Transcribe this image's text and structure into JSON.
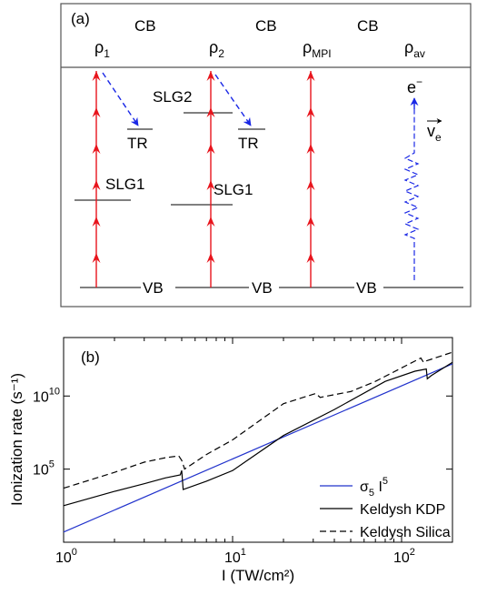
{
  "panel_a": {
    "label": "(a)",
    "cb_labels": [
      "CB",
      "CB",
      "CB"
    ],
    "vb_labels": [
      "VB",
      "VB",
      "VB"
    ],
    "rho": [
      {
        "base": "ρ",
        "sub": "1"
      },
      {
        "base": "ρ",
        "sub": "2"
      },
      {
        "base": "ρ",
        "sub": "MPI"
      },
      {
        "base": "ρ",
        "sub": "av"
      }
    ],
    "slg1_a": "SLG1",
    "slg1_b": "SLG1",
    "slg2": "SLG2",
    "tr_a": "TR",
    "tr_b": "TR",
    "electron": {
      "base": "e",
      "sup": "−"
    },
    "velocity": {
      "base": "v",
      "sub": "e"
    },
    "colors": {
      "photon": "#e8141c",
      "electron": "#1a28e6",
      "frame": "#555555"
    }
  },
  "chart_data": {
    "type": "line",
    "panel_label": "(b)",
    "xlabel": "I (TW/cm²)",
    "ylabel": "Ionization rate (s⁻¹)",
    "xscale": "log",
    "yscale": "log",
    "xlim": [
      1,
      200
    ],
    "ylim": [
      1,
      100000000000000.0
    ],
    "x_ticks": [
      {
        "v": 1,
        "base": "10",
        "exp": "0"
      },
      {
        "v": 10,
        "base": "10",
        "exp": "1"
      },
      {
        "v": 100,
        "base": "10",
        "exp": "2"
      }
    ],
    "y_ticks": [
      {
        "v": 100000,
        "base": "10",
        "exp": "5"
      },
      {
        "v": 10000000000,
        "base": "10",
        "exp": "10"
      }
    ],
    "legend_position": "bottom-right",
    "series": [
      {
        "name": "σ5 I5",
        "legend": {
          "base": "σ",
          "sub": "5",
          "mid": " I",
          "sup": "5"
        },
        "color": "#2233cc",
        "dash": "solid",
        "x": [
          1,
          200
        ],
        "y": [
          5,
          1600000000000.0
        ]
      },
      {
        "name": "Keldysh KDP",
        "legend": {
          "base": "Keldysh KDP"
        },
        "color": "#000000",
        "dash": "solid",
        "x": [
          1,
          2,
          3,
          4,
          4.9,
          5.0,
          5.1,
          7,
          10,
          20,
          40,
          80,
          120,
          140,
          142,
          150,
          200
        ],
        "y": [
          316,
          3000,
          10000,
          25000,
          40000,
          80000,
          4000,
          15000,
          80000,
          20000000.0,
          1200000000.0,
          100000000000.0,
          500000000000.0,
          700000000000.0,
          150000000000.0,
          250000000000.0,
          2000000000000.0
        ]
      },
      {
        "name": "Keldysh Silica",
        "legend": {
          "base": "Keldysh Silica"
        },
        "color": "#000000",
        "dash": "dashed",
        "x": [
          1,
          2,
          3,
          4,
          4.8,
          5.0,
          5.2,
          7,
          10,
          20,
          31,
          33,
          50,
          70,
          130,
          135,
          140,
          200
        ],
        "y": [
          5000,
          60000,
          300000,
          600000,
          800000,
          400000,
          100000,
          1000000.0,
          10000000.0,
          3000000000.0,
          15000000000.0,
          8000000000.0,
          20000000000.0,
          100000000000.0,
          4000000000000.0,
          2000000000000.0,
          2500000000000.0,
          10000000000000.0
        ]
      }
    ]
  }
}
